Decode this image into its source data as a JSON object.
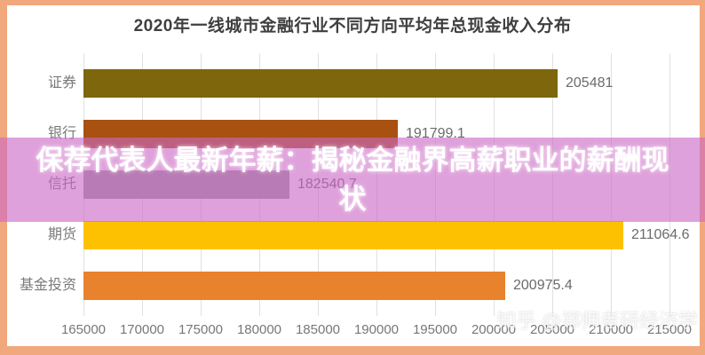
{
  "chart_data": {
    "type": "bar",
    "orientation": "horizontal",
    "title": "2020年一线城市金融行业不同方向平均年总现金收入分布",
    "categories": [
      "证券",
      "银行",
      "信托",
      "期货",
      "基金投资"
    ],
    "values": [
      205481,
      191799.1,
      182540.7,
      211064.6,
      200975.4
    ],
    "value_labels": [
      "205481",
      "191799.1",
      "182540.7",
      "211064.6",
      "200975.4"
    ],
    "bar_colors": [
      "#7D660B",
      "#A85110",
      "#9C9C9C",
      "#FDC101",
      "#E8822D"
    ],
    "xlabel": "",
    "ylabel": "",
    "xlim": [
      165000,
      215000
    ],
    "x_ticks": [
      165000,
      170000,
      175000,
      180000,
      185000,
      190000,
      195000,
      200000,
      205000,
      210000,
      215000
    ],
    "x_tick_labels": [
      "165000",
      "170000",
      "175000",
      "180000",
      "185000",
      "190000",
      "195000",
      "200000",
      "205000",
      "210000",
      "215000"
    ],
    "grid": true,
    "legend": false
  },
  "overlay": {
    "headline_line1": "保荐代表人最新年薪：揭秘金融界高薪职业的薪酬现",
    "headline_line2": "状",
    "band_color": "#CB67C5",
    "text_color": "#FFFFFF"
  },
  "watermark": "知乎 @郑师者研经济学",
  "frame": {
    "border_color": "#F1A87C",
    "background_color": "#FFFFFF"
  }
}
